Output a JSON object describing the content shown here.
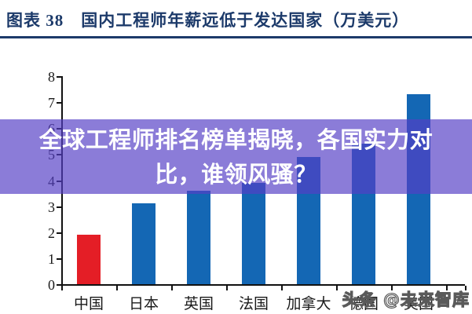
{
  "title": {
    "text": "图表 38　国内工程师年薪远低于发达国家（万美元）"
  },
  "chart_data": {
    "type": "bar",
    "title": "国内工程师年薪远低于发达国家（万美元）",
    "categories": [
      "中国",
      "日本",
      "英国",
      "法国",
      "加拿大",
      "德国",
      "美国"
    ],
    "values": [
      1.9,
      3.1,
      3.6,
      3.9,
      4.9,
      5.4,
      7.3
    ],
    "xlabel": "",
    "ylabel": "",
    "ylim": [
      0,
      8
    ],
    "yticks": [
      0,
      1,
      2,
      3,
      4,
      5,
      6,
      7,
      8
    ],
    "grid": false,
    "legend": "none",
    "highlight_category": "中国",
    "highlight_color": "#e41e26",
    "bar_color": "#1467b4"
  },
  "overlay": {
    "text": "全球工程师排名榜单揭晓，各国实力对比，谁领风骚？",
    "bg": "rgba(84,62,198,0.68)",
    "text_color": "#ffffff"
  },
  "watermark": {
    "text": "头条 @未来智库"
  },
  "colors": {
    "title_navy": "#1c3a6a",
    "axis_black": "#111111",
    "background": "#ffffff"
  }
}
